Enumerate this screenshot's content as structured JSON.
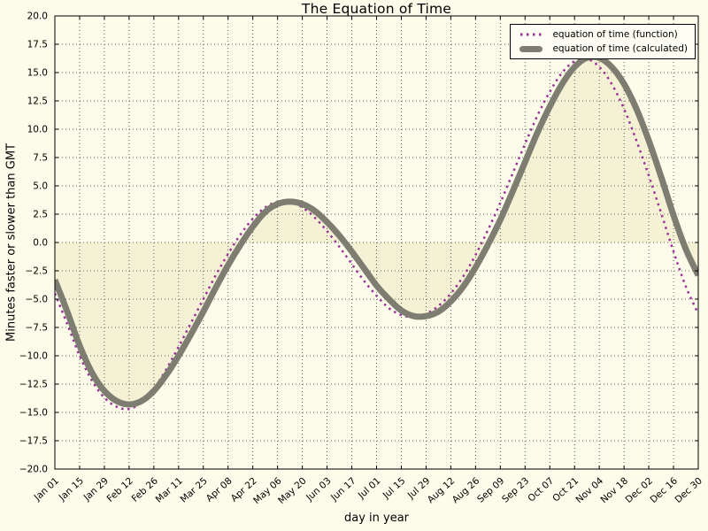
{
  "figure": {
    "title": "The Equation of Time",
    "xlabel": "day in year",
    "ylabel": "Minutes faster or slower than GMT",
    "background_color": "#fdfbea"
  },
  "legend": {
    "position": "upper right",
    "items": [
      {
        "label": "equation of time (function)",
        "swatch": "dotted-line",
        "color": "#993399"
      },
      {
        "label": "equation of time (calculated)",
        "swatch": "thick-line",
        "color": "#7d7d72"
      }
    ]
  },
  "chart_data": {
    "type": "line",
    "title": "The Equation of Time",
    "xlabel": "day in year",
    "ylabel": "Minutes faster or slower than GMT",
    "xlim": [
      1,
      365
    ],
    "ylim": [
      -20,
      20
    ],
    "grid": true,
    "grid_style": "dotted",
    "legend_position": "upper right",
    "y_ticks": [
      -20,
      -17.5,
      -15,
      -12.5,
      -10,
      -7.5,
      -5,
      -2.5,
      0,
      2.5,
      5,
      7.5,
      10,
      12.5,
      15,
      17.5,
      20
    ],
    "y_tick_labels": [
      "−20.0",
      "−17.5",
      "−15.0",
      "−12.5",
      "−10.0",
      "−7.5",
      "−5.0",
      "−2.5",
      "0.0",
      "2.5",
      "5.0",
      "7.5",
      "10.0",
      "12.5",
      "15.0",
      "17.5",
      "20.0"
    ],
    "x_tick_days": [
      1,
      15,
      29,
      43,
      57,
      71,
      85,
      99,
      113,
      127,
      141,
      155,
      169,
      183,
      197,
      211,
      225,
      239,
      253,
      267,
      281,
      295,
      309,
      323,
      337,
      351,
      365
    ],
    "x_tick_labels": [
      "Jan 01",
      "Jan 15",
      "Jan 29",
      "Feb 12",
      "Feb 26",
      "Mar 11",
      "Mar 25",
      "Apr 08",
      "Apr 22",
      "May 06",
      "May 20",
      "Jun 03",
      "Jun 17",
      "Jul 01",
      "Jul 15",
      "Jul 29",
      "Aug 12",
      "Aug 26",
      "Sep 09",
      "Sep 23",
      "Oct 07",
      "Oct 21",
      "Nov 04",
      "Nov 18",
      "Dec 02",
      "Dec 16",
      "Dec 30"
    ],
    "x": [
      1,
      8,
      15,
      22,
      29,
      36,
      43,
      50,
      57,
      64,
      71,
      78,
      85,
      92,
      99,
      106,
      113,
      120,
      127,
      134,
      141,
      148,
      155,
      162,
      169,
      176,
      183,
      190,
      197,
      204,
      211,
      218,
      225,
      232,
      239,
      246,
      253,
      260,
      267,
      274,
      281,
      288,
      295,
      302,
      309,
      316,
      323,
      330,
      337,
      344,
      351,
      358,
      365
    ],
    "series": [
      {
        "name": "equation of time (function)",
        "color": "#993399",
        "style": "dotted",
        "width": 2.5,
        "values": [
          -4.5,
          -7.2,
          -10.0,
          -12.2,
          -13.7,
          -14.5,
          -14.7,
          -14.1,
          -12.9,
          -11.2,
          -9.2,
          -7.1,
          -5.0,
          -2.9,
          -1.0,
          0.7,
          2.1,
          3.1,
          3.6,
          3.6,
          3.1,
          2.2,
          1.0,
          -0.4,
          -1.9,
          -3.4,
          -4.7,
          -5.8,
          -6.4,
          -6.6,
          -6.3,
          -5.6,
          -4.5,
          -3.0,
          -1.1,
          1.1,
          3.5,
          6.1,
          8.7,
          11.2,
          13.3,
          15.0,
          16.0,
          16.2,
          15.5,
          14.0,
          11.8,
          9.0,
          5.9,
          2.6,
          -0.8,
          -3.9,
          -6.3
        ]
      },
      {
        "name": "equation of time (calculated)",
        "color": "#7d7d72",
        "style": "solid",
        "width": 7,
        "values": [
          -3.3,
          -6.1,
          -9.1,
          -11.5,
          -13.1,
          -14.0,
          -14.3,
          -14.0,
          -13.1,
          -11.7,
          -10.0,
          -8.1,
          -6.1,
          -4.0,
          -2.0,
          -0.2,
          1.4,
          2.7,
          3.4,
          3.6,
          3.4,
          2.8,
          1.8,
          0.6,
          -0.8,
          -2.3,
          -3.8,
          -5.0,
          -6.0,
          -6.5,
          -6.5,
          -6.1,
          -5.2,
          -3.9,
          -2.2,
          -0.2,
          2.0,
          4.5,
          7.1,
          9.7,
          12.0,
          14.0,
          15.5,
          16.3,
          16.3,
          15.5,
          14.0,
          11.8,
          9.0,
          5.8,
          2.4,
          -0.6,
          -2.9
        ]
      }
    ],
    "fill_between": {
      "series": "equation of time (calculated)",
      "baseline": 0,
      "color": "#f5f1d4"
    },
    "axes": {
      "frame_color": "#000000",
      "grid_color": "#3a3a3a",
      "tick_label_fontsize": 10.5,
      "x_tick_rotation_deg": 42
    }
  }
}
